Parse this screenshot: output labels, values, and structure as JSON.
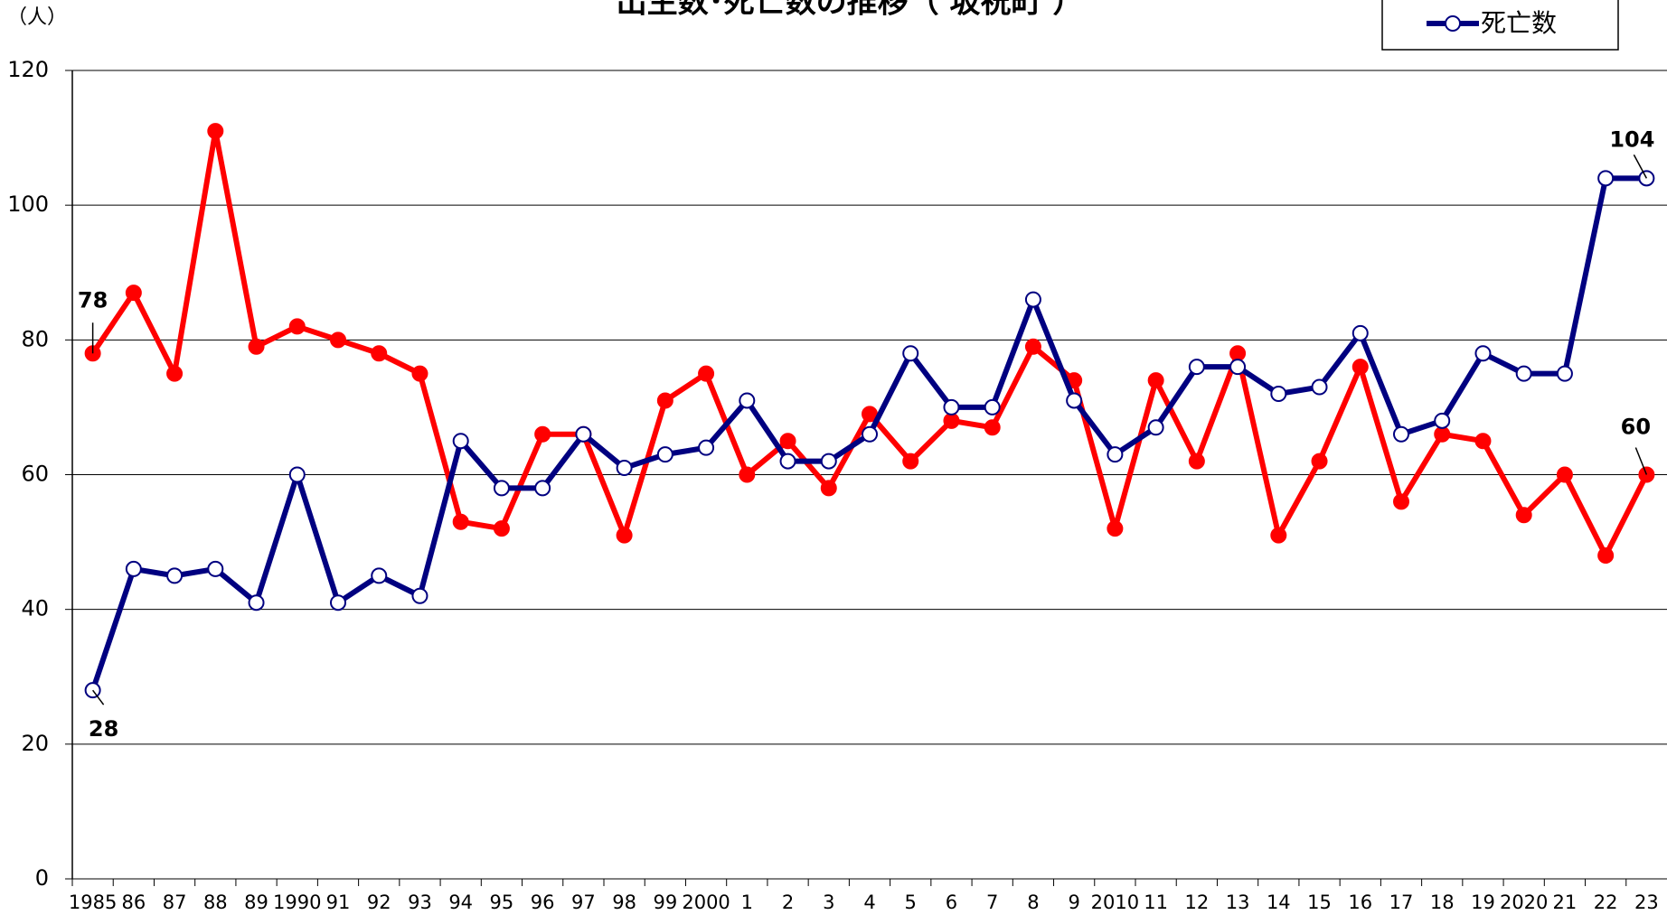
{
  "chart_data": {
    "type": "line",
    "title": "出生数･死亡数の推移（ 坂祝町 ）",
    "y_label": "（人）",
    "categories": [
      "1985",
      "86",
      "87",
      "88",
      "89",
      "1990",
      "91",
      "92",
      "93",
      "94",
      "95",
      "96",
      "97",
      "98",
      "99",
      "2000",
      "1",
      "2",
      "3",
      "4",
      "5",
      "6",
      "7",
      "8",
      "9",
      "2010",
      "11",
      "12",
      "13",
      "14",
      "15",
      "16",
      "17",
      "18",
      "19",
      "2020",
      "21",
      "22",
      "23"
    ],
    "series": [
      {
        "color": "#ff0000",
        "marker": "filled",
        "values": [
          78,
          87,
          75,
          111,
          79,
          82,
          80,
          78,
          75,
          53,
          52,
          66,
          66,
          51,
          71,
          75,
          60,
          65,
          58,
          69,
          62,
          68,
          67,
          79,
          74,
          52,
          74,
          62,
          78,
          51,
          62,
          76,
          56,
          66,
          65,
          54,
          60,
          48,
          60
        ]
      },
      {
        "name": "死亡数",
        "color": "#000080",
        "marker": "open",
        "values": [
          28,
          46,
          45,
          46,
          41,
          60,
          41,
          45,
          42,
          65,
          58,
          58,
          66,
          61,
          63,
          64,
          71,
          62,
          62,
          66,
          78,
          70,
          70,
          86,
          71,
          63,
          67,
          76,
          76,
          72,
          73,
          81,
          66,
          68,
          78,
          75,
          75,
          104,
          104
        ]
      }
    ],
    "ylim": [
      0,
      120
    ],
    "yticks": [
      0,
      20,
      40,
      60,
      80,
      100,
      120
    ],
    "grid": true
  }
}
